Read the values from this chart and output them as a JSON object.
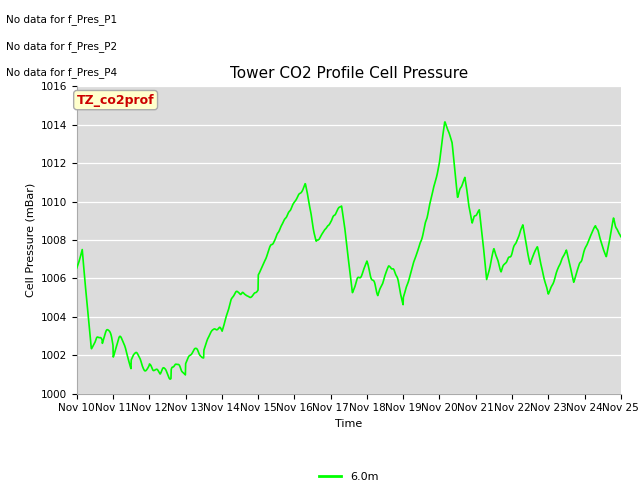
{
  "title": "Tower CO2 Profile Cell Pressure",
  "xlabel": "Time",
  "ylabel": "Cell Pressure (mBar)",
  "ylim": [
    1000,
    1016
  ],
  "yticks": [
    1000,
    1002,
    1004,
    1006,
    1008,
    1010,
    1012,
    1014,
    1016
  ],
  "xtick_labels": [
    "Nov 10",
    "Nov 11",
    "Nov 12",
    "Nov 13",
    "Nov 14",
    "Nov 15",
    "Nov 16",
    "Nov 17",
    "Nov 18",
    "Nov 19",
    "Nov 20",
    "Nov 21",
    "Nov 22",
    "Nov 23",
    "Nov 24",
    "Nov 25"
  ],
  "line_color": "#00ff00",
  "line_width": 1.2,
  "bg_color": "#dcdcdc",
  "no_data_labels": [
    "No data for f_Pres_P1",
    "No data for f_Pres_P2",
    "No data for f_Pres_P4"
  ],
  "legend_label": "6.0m",
  "legend_color": "#00ff00",
  "box_label": "TZ_co2prof",
  "box_facecolor": "#ffffcc",
  "box_edgecolor": "#aaaaaa",
  "box_textcolor": "#cc0000",
  "title_fontsize": 11,
  "axis_fontsize": 8,
  "tick_fontsize": 7.5,
  "no_data_fontsize": 7.5
}
